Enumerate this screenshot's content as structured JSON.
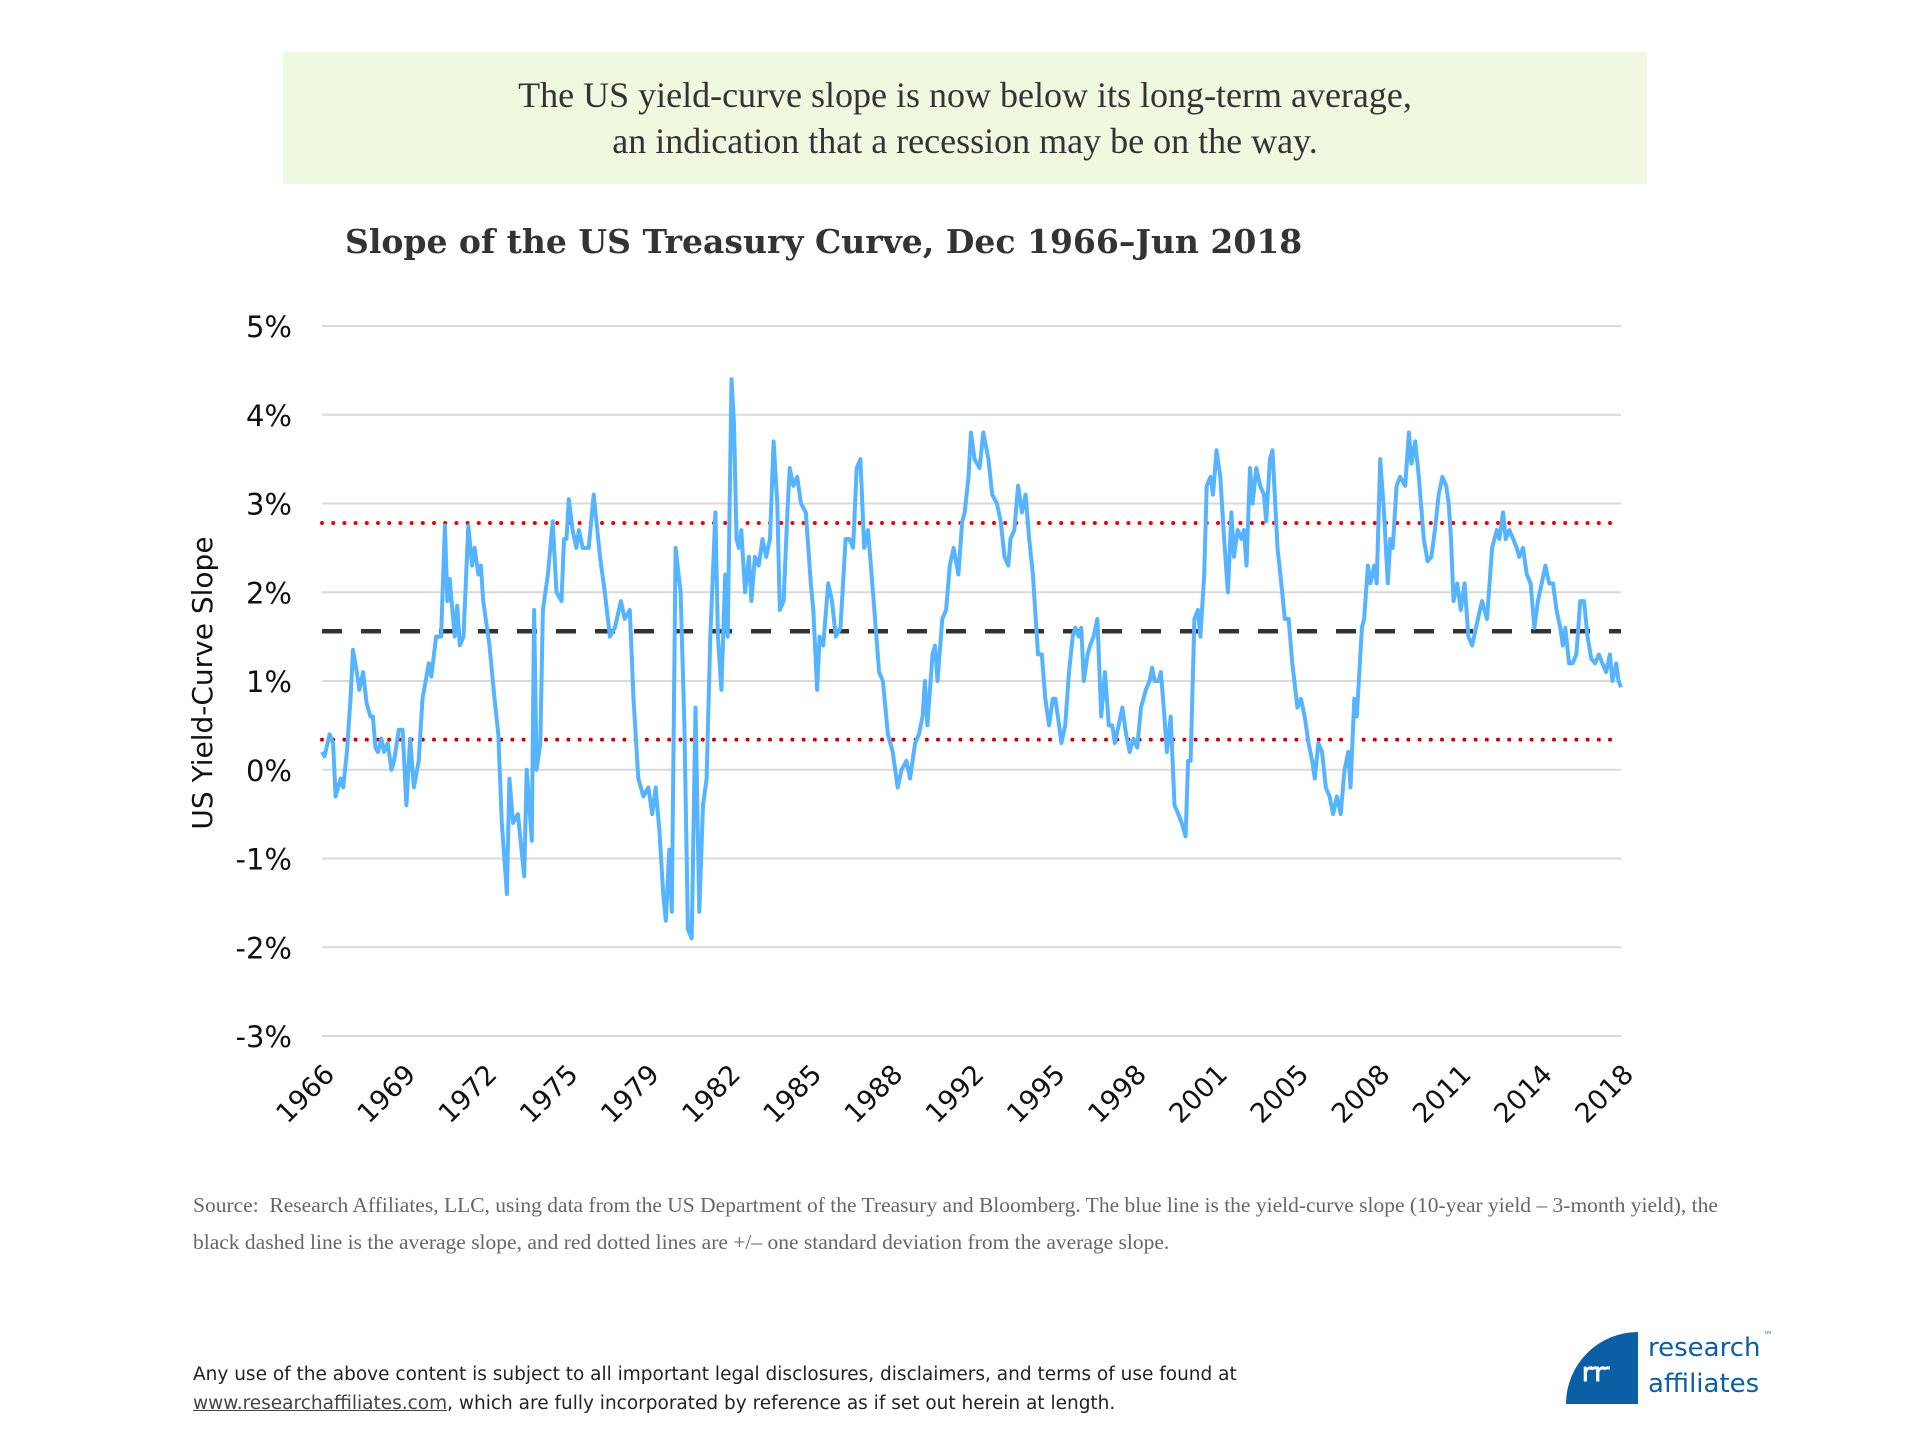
{
  "headline": {
    "line1": "The US yield-curve slope is now below its long-term average,",
    "line2": "an indication that a recession may be on the way."
  },
  "chart_data": {
    "type": "line",
    "title": "Slope of the US Treasury Curve, Dec 1966–Jun 2018",
    "xlabel": "",
    "ylabel": "US Yield-Curve Slope",
    "xlim": [
      1966.92,
      2018.5
    ],
    "ylim": [
      -3,
      5
    ],
    "y_ticks": [
      "5%",
      "4%",
      "3%",
      "2%",
      "1%",
      "0%",
      "-1%",
      "-2%",
      "-3%"
    ],
    "x_ticks": [
      "1966",
      "1969",
      "1972",
      "1975",
      "1979",
      "1982",
      "1985",
      "1988",
      "1992",
      "1995",
      "1998",
      "2001",
      "2005",
      "2008",
      "2011",
      "2014",
      "2018"
    ],
    "grid": "horizontal",
    "colors": {
      "slope": "#55b3ff",
      "average": "#333333",
      "std_dev": "#ee0000",
      "grid": "#d9d9d9"
    },
    "reference_lines": {
      "average": 1.56,
      "plus_one_sd": 2.78,
      "minus_one_sd": 0.34
    },
    "series": [
      {
        "x": [
          1966.92,
          1967.02,
          1967.22,
          1967.36,
          1967.46,
          1967.66,
          1967.76,
          1967.91,
          1968.05,
          1968.15,
          1968.3,
          1968.4,
          1968.55,
          1968.69,
          1968.84,
          1968.94,
          1969.04,
          1969.14,
          1969.28,
          1969.38,
          1969.53,
          1969.68,
          1969.78,
          1969.97,
          1970.12,
          1970.27,
          1970.42,
          1970.57,
          1970.76,
          1970.91,
          1971.16,
          1971.26,
          1971.45,
          1971.65,
          1971.8,
          1971.9,
          1971.99,
          1972.19,
          1972.29,
          1972.39,
          1972.54,
          1972.73,
          1972.88,
          1972.98,
          1973.13,
          1973.23,
          1973.32,
          1973.57,
          1973.77,
          1973.92,
          1974.06,
          1974.26,
          1974.36,
          1974.51,
          1974.7,
          1974.95,
          1975.05,
          1975.25,
          1975.34,
          1975.44,
          1975.59,
          1975.69,
          1975.89,
          1976.08,
          1976.23,
          1976.43,
          1976.53,
          1976.63,
          1976.72,
          1976.87,
          1977.02,
          1977.12,
          1977.27,
          1977.51,
          1977.71,
          1977.96,
          1978.15,
          1978.35,
          1978.55,
          1978.79,
          1978.94,
          1979.14,
          1979.29,
          1979.48,
          1979.68,
          1979.88,
          1980.03,
          1980.17,
          1980.32,
          1980.47,
          1980.57,
          1980.71,
          1980.81,
          1980.96,
          1981.16,
          1981.31,
          1981.45,
          1981.6,
          1981.75,
          1981.9,
          1982.05,
          1982.19,
          1982.34,
          1982.54,
          1982.64,
          1982.78,
          1982.93,
          1983.03,
          1983.18,
          1983.28,
          1983.38,
          1983.47,
          1983.57,
          1983.72,
          1983.87,
          1983.97,
          1984.11,
          1984.26,
          1984.41,
          1984.56,
          1984.71,
          1984.85,
          1985.0,
          1985.1,
          1985.25,
          1985.4,
          1985.49,
          1985.64,
          1985.79,
          1985.94,
          1986.13,
          1986.33,
          1986.43,
          1986.58,
          1986.68,
          1986.82,
          1987.02,
          1987.17,
          1987.32,
          1987.51,
          1987.71,
          1987.86,
          1988.01,
          1988.15,
          1988.3,
          1988.45,
          1988.6,
          1988.8,
          1989.04,
          1989.19,
          1989.39,
          1989.58,
          1989.78,
          1989.93,
          1990.13,
          1990.27,
          1990.47,
          1990.62,
          1990.77,
          1990.86,
          1990.96,
          1991.16,
          1991.26,
          1991.36,
          1991.55,
          1991.7,
          1991.85,
          1992.0,
          1992.19,
          1992.34,
          1992.44,
          1992.59,
          1992.69,
          1992.83,
          1993.03,
          1993.18,
          1993.38,
          1993.53,
          1993.72,
          1993.87,
          1994.02,
          1994.17,
          1994.26,
          1994.41,
          1994.56,
          1994.71,
          1994.86,
          1995.0,
          1995.15,
          1995.35,
          1995.5,
          1995.64,
          1995.79,
          1995.94,
          1996.04,
          1996.19,
          1996.28,
          1996.43,
          1996.58,
          1996.73,
          1996.83,
          1996.97,
          1997.07,
          1997.17,
          1997.32,
          1997.42,
          1997.56,
          1997.71,
          1997.86,
          1998.01,
          1998.16,
          1998.3,
          1998.4,
          1998.55,
          1998.7,
          1998.85,
          1998.99,
          1999.14,
          1999.29,
          1999.44,
          1999.63,
          1999.78,
          1999.88,
          1999.98,
          2000.13,
          2000.23,
          2000.37,
          2000.47,
          2000.62,
          2000.77,
          2000.92,
          2001.06,
          2001.21,
          2001.31,
          2001.41,
          2001.56,
          2001.7,
          2001.8,
          2001.95,
          2002.05,
          2002.2,
          2002.3,
          2002.44,
          2002.59,
          2002.74,
          2002.89,
          2003.03,
          2003.13,
          2003.28,
          2003.43,
          2003.53,
          2003.63,
          2003.77,
          2003.87,
          2004.02,
          2004.17,
          2004.32,
          2004.41,
          2004.56,
          2004.66,
          2004.86,
          2005.01,
          2005.15,
          2005.3,
          2005.45,
          2005.65,
          2005.79,
          2005.94,
          2006.09,
          2006.24,
          2006.34,
          2006.48,
          2006.63,
          2006.78,
          2006.93,
          2007.07,
          2007.22,
          2007.37,
          2007.52,
          2007.67,
          2007.76,
          2007.91,
          2008.01,
          2008.21,
          2008.3,
          2008.45,
          2008.55,
          2008.7,
          2008.8,
          2008.94,
          2009.09,
          2009.24,
          2009.34,
          2009.44,
          2009.59,
          2009.73,
          2009.93,
          2010.08,
          2010.18,
          2010.33,
          2010.47,
          2010.67,
          2010.82,
          2010.97,
          2011.11,
          2011.26,
          2011.41,
          2011.56,
          2011.66,
          2011.75,
          2011.85,
          2012.0,
          2012.14,
          2012.29,
          2012.44,
          2012.59,
          2012.74,
          2012.98,
          2013.18,
          2013.38,
          2013.57,
          2013.67,
          2013.82,
          2013.92,
          2014.07,
          2014.22,
          2014.36,
          2014.46,
          2014.61,
          2014.76,
          2014.91,
          2015.06,
          2015.2,
          2015.35,
          2015.5,
          2015.65,
          2015.8,
          2015.94,
          2016.09,
          2016.19,
          2016.29,
          2016.44,
          2016.58,
          2016.73,
          2016.88,
          2017.03,
          2017.17,
          2017.32,
          2017.47,
          2017.62,
          2017.76,
          2017.91,
          2018.06,
          2018.16,
          2018.31,
          2018.4,
          2018.5
        ],
        "y": [
          0.2,
          0.15,
          0.4,
          0.3,
          -0.3,
          -0.1,
          -0.2,
          0.2,
          0.8,
          1.35,
          1.1,
          0.9,
          1.1,
          0.75,
          0.6,
          0.6,
          0.25,
          0.2,
          0.35,
          0.2,
          0.3,
          0.0,
          0.1,
          0.45,
          0.45,
          -0.4,
          0.35,
          -0.2,
          0.1,
          0.8,
          1.2,
          1.05,
          1.5,
          1.5,
          2.75,
          1.9,
          2.15,
          1.5,
          1.85,
          1.4,
          1.5,
          2.75,
          2.3,
          2.5,
          2.2,
          2.3,
          1.9,
          1.4,
          0.8,
          0.4,
          -0.6,
          -1.4,
          -0.1,
          -0.6,
          -0.5,
          -1.2,
          0.0,
          -0.8,
          1.8,
          0.0,
          0.3,
          1.8,
          2.2,
          2.8,
          2.0,
          1.9,
          2.6,
          2.6,
          3.05,
          2.7,
          2.5,
          2.7,
          2.5,
          2.5,
          3.1,
          2.4,
          2.0,
          1.5,
          1.6,
          1.9,
          1.7,
          1.8,
          0.8,
          -0.1,
          -0.3,
          -0.2,
          -0.5,
          -0.2,
          -0.7,
          -1.4,
          -1.7,
          -0.9,
          -1.6,
          2.5,
          2.0,
          0.5,
          -1.8,
          -1.9,
          0.7,
          -1.6,
          -0.4,
          -0.1,
          1.5,
          2.9,
          1.5,
          0.9,
          2.2,
          1.5,
          4.4,
          3.9,
          2.6,
          2.5,
          2.7,
          2.0,
          2.4,
          1.9,
          2.4,
          2.3,
          2.6,
          2.4,
          2.6,
          3.7,
          3.0,
          1.8,
          1.9,
          2.9,
          3.4,
          3.2,
          3.3,
          3.0,
          2.9,
          2.1,
          1.8,
          0.9,
          1.5,
          1.4,
          2.1,
          1.9,
          1.5,
          1.6,
          2.6,
          2.6,
          2.5,
          3.4,
          3.5,
          2.5,
          2.7,
          2.0,
          1.1,
          1.0,
          0.4,
          0.2,
          -0.2,
          0.0,
          0.1,
          -0.1,
          0.3,
          0.4,
          0.6,
          1.0,
          0.5,
          1.3,
          1.4,
          1.0,
          1.7,
          1.8,
          2.3,
          2.5,
          2.2,
          2.8,
          2.9,
          3.3,
          3.8,
          3.5,
          3.4,
          3.8,
          3.5,
          3.1,
          3.0,
          2.8,
          2.4,
          2.3,
          2.6,
          2.7,
          3.2,
          2.9,
          3.1,
          2.6,
          2.2,
          1.3,
          1.3,
          0.8,
          0.5,
          0.8,
          0.8,
          0.5,
          0.3,
          0.5,
          1.1,
          1.5,
          1.6,
          1.5,
          1.6,
          1.0,
          1.3,
          1.4,
          1.5,
          1.7,
          0.6,
          1.1,
          0.5,
          0.5,
          0.3,
          0.5,
          0.7,
          0.4,
          0.2,
          0.35,
          0.25,
          0.7,
          0.9,
          1.0,
          1.15,
          1.0,
          1.0,
          1.1,
          0.6,
          0.2,
          0.6,
          -0.4,
          -0.5,
          -0.6,
          -0.75,
          0.1,
          0.1,
          1.7,
          1.8,
          1.5,
          2.2,
          3.2,
          3.3,
          3.1,
          3.6,
          3.3,
          2.6,
          2.0,
          2.9,
          2.4,
          2.7,
          2.6,
          2.7,
          2.3,
          3.4,
          3.0,
          3.4,
          3.2,
          3.1,
          2.8,
          3.5,
          3.6,
          2.5,
          2.1,
          1.7,
          1.7,
          1.2,
          0.7,
          0.8,
          0.6,
          0.3,
          0.1,
          -0.1,
          0.3,
          0.2,
          -0.2,
          -0.3,
          -0.5,
          -0.3,
          -0.5,
          0.0,
          0.2,
          -0.2,
          0.8,
          0.6,
          1.6,
          1.7,
          2.3,
          2.1,
          2.3,
          2.1,
          3.5,
          2.9,
          2.1,
          2.6,
          2.5,
          3.2,
          3.3,
          3.2,
          3.8,
          3.45,
          3.7,
          3.3,
          2.6,
          2.35,
          2.4,
          2.7,
          3.1,
          3.3,
          3.2,
          3.0,
          2.6,
          1.9,
          2.1,
          1.8,
          2.1,
          1.5,
          1.4,
          1.6,
          1.9,
          1.7,
          2.5,
          2.7,
          2.6,
          2.9,
          2.6,
          2.7,
          2.6,
          2.5,
          2.4,
          2.5,
          2.2,
          2.1,
          1.6,
          1.9,
          2.1,
          2.3,
          2.1,
          2.1,
          1.8,
          1.6,
          1.4,
          1.6,
          1.2,
          1.2,
          1.3,
          1.9,
          1.9,
          1.5,
          1.25,
          1.2,
          1.3,
          1.2,
          1.1,
          1.3,
          1.0,
          1.2,
          1.0,
          0.93
        ]
      }
    ]
  },
  "source": "Source:  Research Affiliates, LLC, using data from the US Department of the Treasury and Bloomberg. The blue line is the yield-curve slope (10-year yield – 3-month yield), the black dashed line is the average slope, and red dotted lines are +/– one standard deviation from the average slope.",
  "footer": {
    "text1": "Any use of the above content is subject to all important legal disclosures, disclaimers, and terms of use found at",
    "link": "www.researchaffiliates.com",
    "text2": ", which are fully incorporated by reference as if set out herein at length."
  },
  "logo": {
    "line1": "research",
    "line2": "affiliates",
    "tm": "™",
    "mark": "ꟺꟺ"
  }
}
